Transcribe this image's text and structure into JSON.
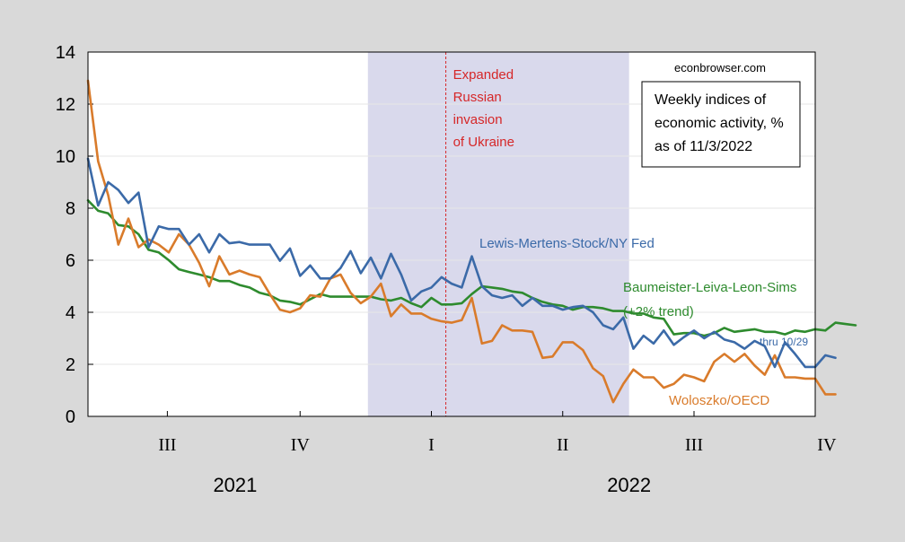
{
  "chart_data": {
    "type": "line",
    "title": "",
    "xlabel": "",
    "ylabel": "",
    "ylim": [
      0,
      14
    ],
    "yticks": [
      "0",
      "2",
      "4",
      "6",
      "8",
      "10",
      "12",
      "14"
    ],
    "xlim": [
      "2021-06-21",
      "2022-11-07"
    ],
    "quarter_ticks": [
      {
        "label": "III",
        "date": "2021-08-15"
      },
      {
        "label": "IV",
        "date": "2021-11-15"
      },
      {
        "label": "I",
        "date": "2022-02-14"
      },
      {
        "label": "II",
        "date": "2022-05-16"
      },
      {
        "label": "III",
        "date": "2022-08-15"
      },
      {
        "label": "IV",
        "date": "2022-11-15"
      }
    ],
    "year_labels": [
      {
        "label": "2021",
        "date": "2021-10-01"
      },
      {
        "label": "2022",
        "date": "2022-07-01"
      }
    ],
    "shaded_region": {
      "from": "2022-01-01",
      "to": "2022-07-01",
      "color": "#d9d9ec"
    },
    "vline": {
      "date": "2022-02-24",
      "color": "#d62728",
      "label": [
        "Expanded",
        "Russian",
        "invasion",
        "of Ukraine"
      ]
    },
    "credit": "econbrowser.com",
    "textbox": [
      "Weekly indices of",
      "economic activity, %",
      "as of 11/3/2022"
    ],
    "grid": true,
    "series": [
      {
        "name": "Lewis-Mertens-Stock/NY Fed",
        "color": "#3b6aa8",
        "note": "thru 10/29",
        "x_start": "2021-06-21",
        "x_step_days": 7,
        "values": [
          9.9,
          8.1,
          9.0,
          8.7,
          8.2,
          8.6,
          6.5,
          7.3,
          7.2,
          7.2,
          6.6,
          7.0,
          6.3,
          7.0,
          6.65,
          6.7,
          6.6,
          6.6,
          6.6,
          5.98,
          6.45,
          5.4,
          5.8,
          5.3,
          5.3,
          5.7,
          6.35,
          5.5,
          6.1,
          5.3,
          6.25,
          5.45,
          4.45,
          4.8,
          4.95,
          5.35,
          5.1,
          4.95,
          6.15,
          5.0,
          4.65,
          4.55,
          4.65,
          4.25,
          4.55,
          4.25,
          4.25,
          4.1,
          4.2,
          4.25,
          4.0,
          3.5,
          3.35,
          3.8,
          2.6,
          3.1,
          2.8,
          3.3,
          2.75,
          3.05,
          3.3,
          3.0,
          3.25,
          2.95,
          2.85,
          2.6,
          2.9,
          2.7,
          1.9,
          2.85,
          2.4,
          1.9,
          1.9,
          2.35,
          2.25
        ]
      },
      {
        "name": "Baumeister-Leiva-Leon-Sims",
        "label_line2": "(+2% trend)",
        "color": "#2e8b2e",
        "x_start": "2021-06-21",
        "x_step_days": 7,
        "values": [
          8.3,
          7.9,
          7.8,
          7.35,
          7.3,
          7.0,
          6.4,
          6.3,
          6.0,
          5.65,
          5.55,
          5.45,
          5.35,
          5.2,
          5.2,
          5.05,
          4.95,
          4.75,
          4.65,
          4.45,
          4.4,
          4.3,
          4.5,
          4.7,
          4.6,
          4.6,
          4.6,
          4.6,
          4.6,
          4.5,
          4.45,
          4.55,
          4.35,
          4.2,
          4.55,
          4.3,
          4.3,
          4.35,
          4.7,
          5.0,
          4.95,
          4.9,
          4.8,
          4.75,
          4.55,
          4.4,
          4.3,
          4.25,
          4.1,
          4.2,
          4.2,
          4.15,
          4.05,
          4.05,
          3.95,
          3.95,
          3.8,
          3.75,
          3.15,
          3.2,
          3.2,
          3.1,
          3.2,
          3.4,
          3.25,
          3.3,
          3.35,
          3.25,
          3.25,
          3.15,
          3.3,
          3.25,
          3.35,
          3.3,
          3.6,
          3.55,
          3.5
        ]
      },
      {
        "name": "Woloszko/OECD",
        "color": "#d97b2b",
        "x_start": "2021-06-21",
        "x_step_days": 7,
        "values": [
          12.9,
          9.8,
          8.5,
          6.6,
          7.6,
          6.5,
          6.8,
          6.6,
          6.3,
          7.0,
          6.6,
          5.9,
          5.0,
          6.15,
          5.45,
          5.6,
          5.45,
          5.35,
          4.7,
          4.1,
          4.0,
          4.15,
          4.65,
          4.6,
          5.3,
          5.45,
          4.75,
          4.35,
          4.6,
          5.1,
          3.85,
          4.3,
          3.95,
          3.95,
          3.75,
          3.65,
          3.6,
          3.7,
          4.55,
          2.8,
          2.9,
          3.5,
          3.3,
          3.3,
          3.25,
          2.25,
          2.3,
          2.85,
          2.85,
          2.55,
          1.85,
          1.55,
          0.55,
          1.25,
          1.8,
          1.5,
          1.5,
          1.1,
          1.25,
          1.6,
          1.5,
          1.35,
          2.1,
          2.4,
          2.1,
          2.4,
          1.95,
          1.6,
          2.35,
          1.5,
          1.5,
          1.45,
          1.45,
          0.85,
          0.85
        ]
      }
    ]
  }
}
